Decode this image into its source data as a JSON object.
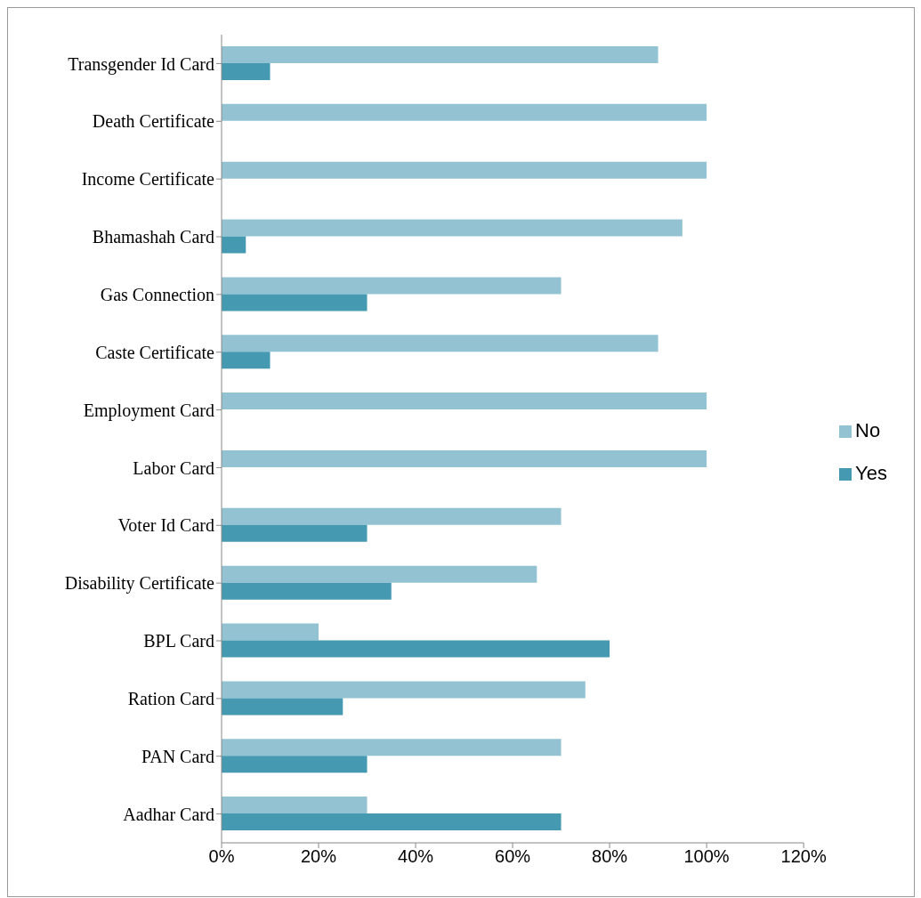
{
  "chart_data": {
    "type": "bar",
    "orientation": "horizontal",
    "categories": [
      "Transgender Id Card",
      "Death Certificate",
      "Income Certificate",
      "Bhamashah Card",
      "Gas Connection",
      "Caste Certificate",
      "Employment Card",
      "Labor Card",
      "Voter Id Card",
      "Disability Certificate",
      "BPL Card",
      "Ration Card",
      "PAN Card",
      "Aadhar Card"
    ],
    "series": [
      {
        "name": "No",
        "color": "#93c3d3",
        "values": [
          90,
          100,
          100,
          95,
          70,
          90,
          100,
          100,
          70,
          65,
          20,
          75,
          70,
          30
        ]
      },
      {
        "name": "Yes",
        "color": "#4599b0",
        "values": [
          10,
          0,
          0,
          5,
          30,
          10,
          0,
          0,
          30,
          35,
          80,
          25,
          30,
          70
        ]
      }
    ],
    "xlim": [
      0,
      120
    ],
    "xticks": [
      {
        "value": 0,
        "label": "0%"
      },
      {
        "value": 20,
        "label": "20%"
      },
      {
        "value": 40,
        "label": "40%"
      },
      {
        "value": 60,
        "label": "60%"
      },
      {
        "value": 80,
        "label": "80%"
      },
      {
        "value": 100,
        "label": "100%"
      },
      {
        "value": 120,
        "label": "120%"
      }
    ],
    "legend": "right"
  }
}
